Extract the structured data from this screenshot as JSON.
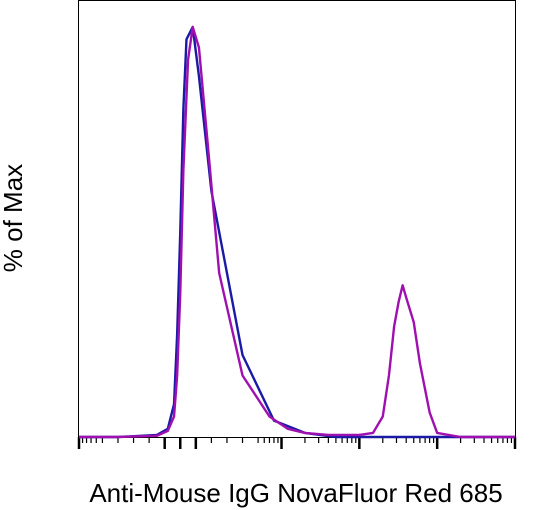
{
  "chart_data": {
    "type": "line",
    "title": "",
    "xlabel": "Anti-Mouse IgG NovaFluor Red 685",
    "ylabel": "% of Max",
    "x_scale": "biexponential",
    "xlim": [
      -100,
      100000
    ],
    "ylim": [
      0,
      100
    ],
    "grid": false,
    "legend": "none",
    "series": [
      {
        "color": "#1a1aa6",
        "x": [
          -100,
          -40,
          -15,
          -8,
          -4,
          -2,
          0,
          2,
          4,
          8,
          12,
          20,
          40,
          80,
          200,
          500,
          1000,
          3000,
          10000,
          100000
        ],
        "y": [
          0,
          0,
          0.5,
          2,
          8,
          25,
          50,
          80,
          97,
          100,
          88,
          60,
          20,
          4,
          1,
          0,
          0,
          0,
          0,
          0
        ]
      },
      {
        "color": "#a010b0",
        "x": [
          -100,
          -40,
          -15,
          -8,
          -4,
          -2,
          0,
          2,
          5,
          8,
          12,
          18,
          25,
          40,
          70,
          120,
          200,
          400,
          700,
          1000,
          1500,
          2000,
          2400,
          2800,
          3200,
          3600,
          4000,
          5000,
          6000,
          8000,
          10000,
          20000,
          100000
        ],
        "y": [
          0,
          0,
          0.3,
          1.5,
          5,
          15,
          35,
          65,
          92,
          100,
          95,
          70,
          40,
          15,
          5,
          2,
          1,
          0.5,
          0.5,
          0.5,
          1,
          5,
          15,
          27,
          33,
          37,
          34,
          28,
          18,
          6,
          1,
          0,
          0
        ]
      }
    ]
  }
}
